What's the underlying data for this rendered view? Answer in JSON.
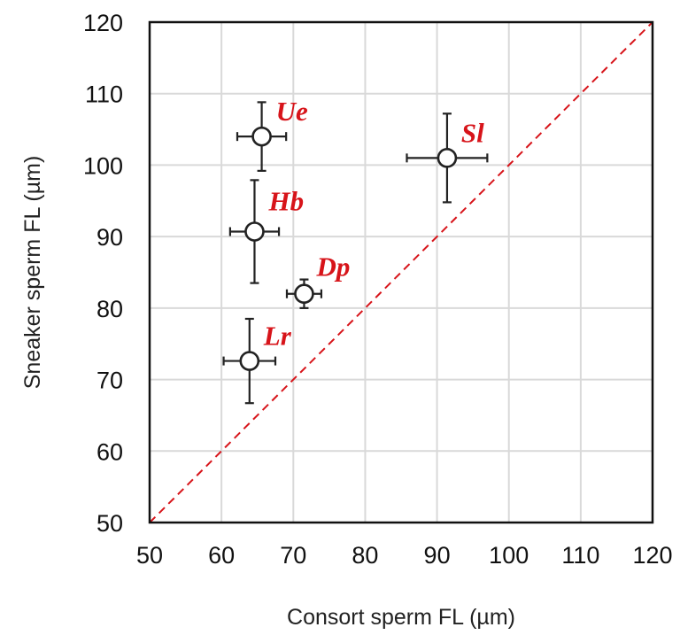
{
  "chart_data": {
    "type": "scatter",
    "xlabel": "Consort sperm FL (µm)",
    "ylabel": "Sneaker sperm FL (µm)",
    "xlim": [
      50,
      120
    ],
    "ylim": [
      50,
      120
    ],
    "x_ticks": [
      50,
      60,
      70,
      80,
      90,
      100,
      110,
      120
    ],
    "y_ticks": [
      50,
      60,
      70,
      80,
      90,
      100,
      110,
      120
    ],
    "grid": true,
    "reference_line": {
      "type": "y=x",
      "style": "dashed",
      "color": "#d7141a"
    },
    "points": [
      {
        "label": "Ue",
        "x": 65.6,
        "y": 104.0,
        "x_err": 3.4,
        "y_err": 4.8
      },
      {
        "label": "Sl",
        "x": 91.4,
        "y": 101.0,
        "x_err": 5.6,
        "y_err": 6.2
      },
      {
        "label": "Hb",
        "x": 64.6,
        "y": 90.7,
        "x_err": 3.4,
        "y_err": 7.2
      },
      {
        "label": "Dp",
        "x": 71.5,
        "y": 82.0,
        "x_err": 2.4,
        "y_err": 2.0
      },
      {
        "label": "Lr",
        "x": 63.9,
        "y": 72.6,
        "x_err": 3.6,
        "y_err": 5.9
      }
    ],
    "marker_color": "#222222",
    "label_color": "#d7141a"
  }
}
